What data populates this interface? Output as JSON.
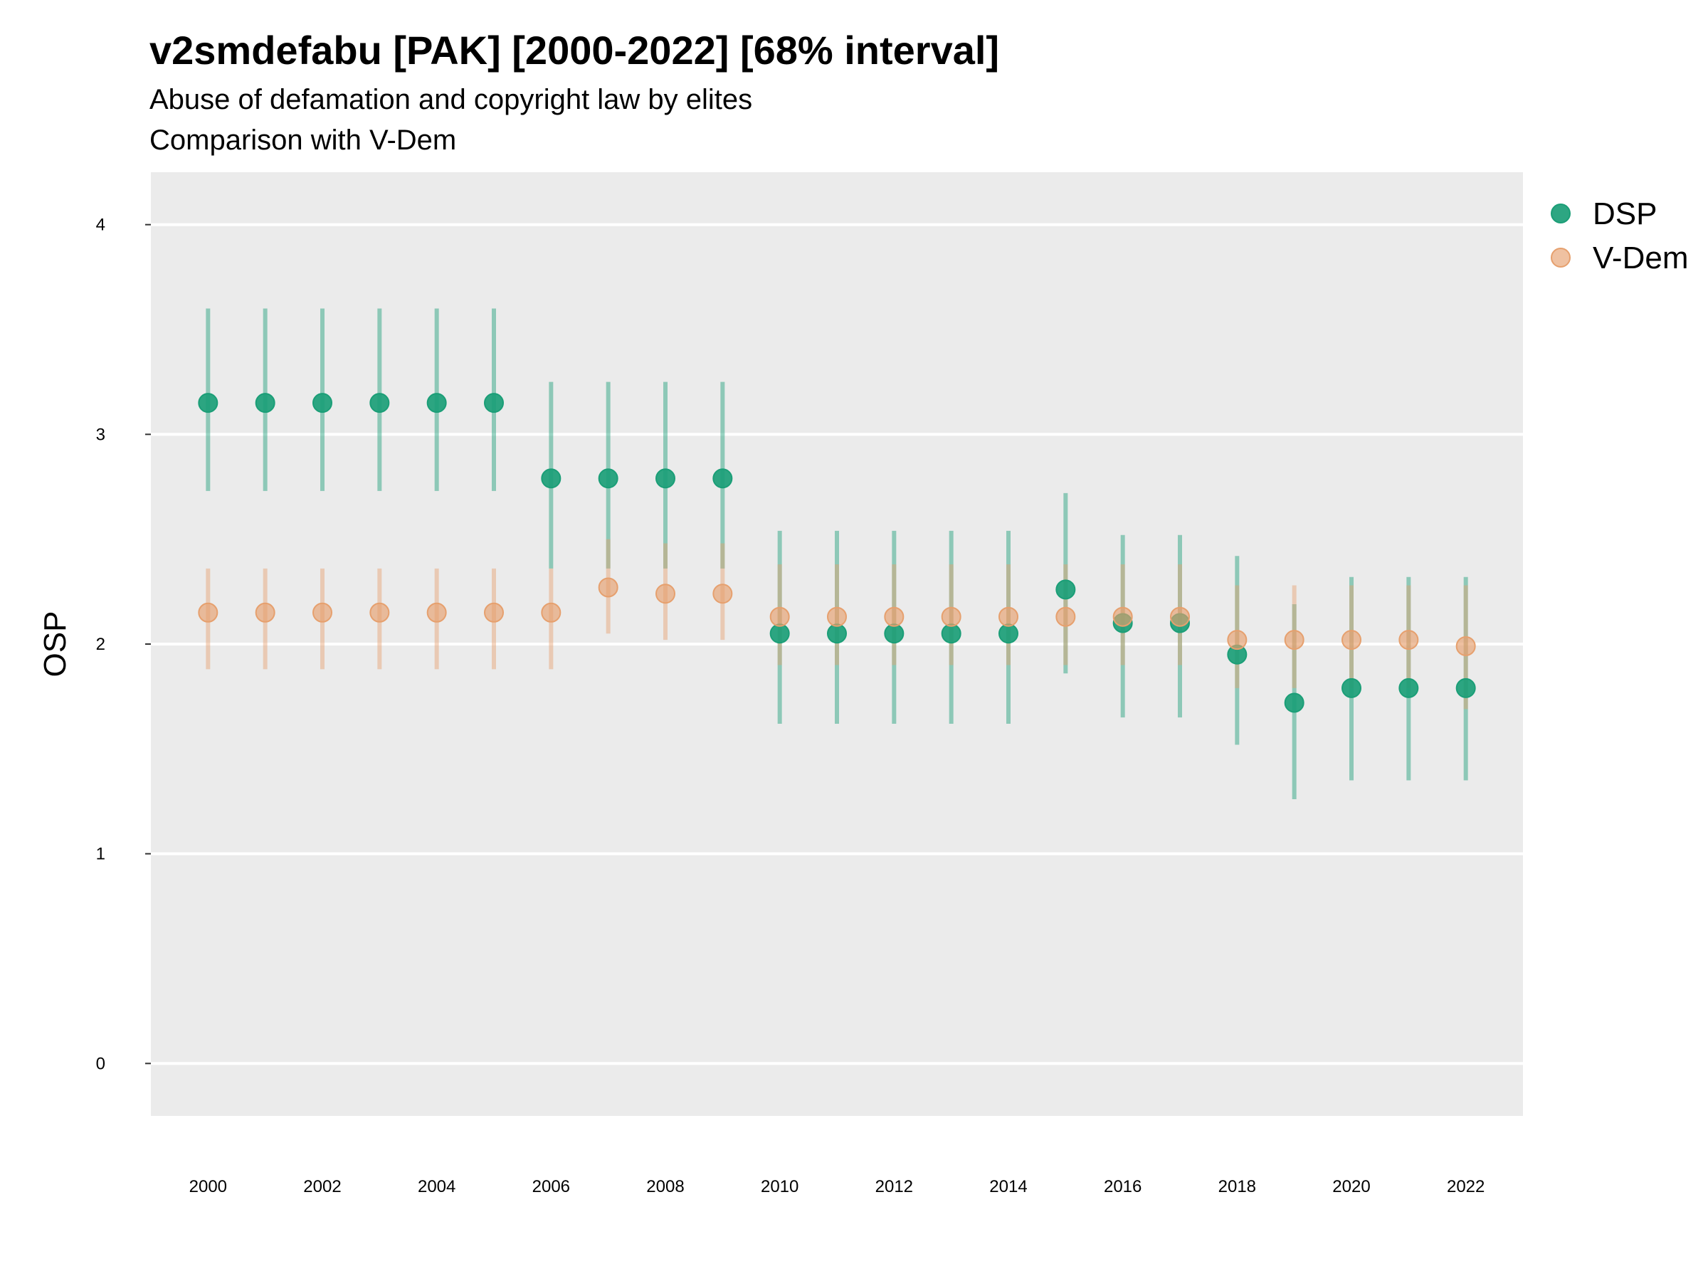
{
  "chart_data": {
    "type": "scatter",
    "title": "v2smdefabu [PAK] [2000-2022] [68% interval]",
    "subtitle": "Abuse of defamation and copyright law by elites",
    "subtitle2": "Comparison with V-Dem",
    "ylabel": "OSP",
    "xlabel": "",
    "ylim": [
      -0.25,
      4.25
    ],
    "xlim": [
      1999,
      2023
    ],
    "yticks": [
      0,
      1,
      2,
      3,
      4
    ],
    "xticks": [
      2000,
      2002,
      2004,
      2006,
      2008,
      2010,
      2012,
      2014,
      2016,
      2018,
      2020,
      2022
    ],
    "grid": true,
    "legend_position": "right",
    "x": [
      2000,
      2001,
      2002,
      2003,
      2004,
      2005,
      2006,
      2007,
      2008,
      2009,
      2010,
      2011,
      2012,
      2013,
      2014,
      2015,
      2016,
      2017,
      2018,
      2019,
      2020,
      2021,
      2022
    ],
    "series": [
      {
        "name": "DSP",
        "color": "#1b9e77",
        "values": [
          3.15,
          3.15,
          3.15,
          3.15,
          3.15,
          3.15,
          2.79,
          2.79,
          2.79,
          2.79,
          2.05,
          2.05,
          2.05,
          2.05,
          2.05,
          2.26,
          2.1,
          2.1,
          1.95,
          1.72,
          1.79,
          1.79,
          1.79
        ],
        "lower": [
          2.73,
          2.73,
          2.73,
          2.73,
          2.73,
          2.73,
          2.36,
          2.36,
          2.36,
          2.36,
          1.62,
          1.62,
          1.62,
          1.62,
          1.62,
          1.86,
          1.65,
          1.65,
          1.52,
          1.26,
          1.35,
          1.35,
          1.35
        ],
        "upper": [
          3.6,
          3.6,
          3.6,
          3.6,
          3.6,
          3.6,
          3.25,
          3.25,
          3.25,
          3.25,
          2.54,
          2.54,
          2.54,
          2.54,
          2.54,
          2.72,
          2.52,
          2.52,
          2.42,
          2.19,
          2.32,
          2.32,
          2.32
        ]
      },
      {
        "name": "V-Dem",
        "color": "#e6a06e",
        "values": [
          2.15,
          2.15,
          2.15,
          2.15,
          2.15,
          2.15,
          2.15,
          2.27,
          2.24,
          2.24,
          2.13,
          2.13,
          2.13,
          2.13,
          2.13,
          2.13,
          2.13,
          2.13,
          2.02,
          2.02,
          2.02,
          2.02,
          1.99
        ],
        "lower": [
          1.88,
          1.88,
          1.88,
          1.88,
          1.88,
          1.88,
          1.88,
          2.05,
          2.02,
          2.02,
          1.9,
          1.9,
          1.9,
          1.9,
          1.9,
          1.9,
          1.9,
          1.9,
          1.79,
          1.79,
          1.79,
          1.79,
          1.69
        ],
        "upper": [
          2.36,
          2.36,
          2.36,
          2.36,
          2.36,
          2.36,
          2.36,
          2.5,
          2.48,
          2.48,
          2.38,
          2.38,
          2.38,
          2.38,
          2.38,
          2.38,
          2.38,
          2.38,
          2.28,
          2.28,
          2.28,
          2.28,
          2.28
        ]
      }
    ]
  }
}
